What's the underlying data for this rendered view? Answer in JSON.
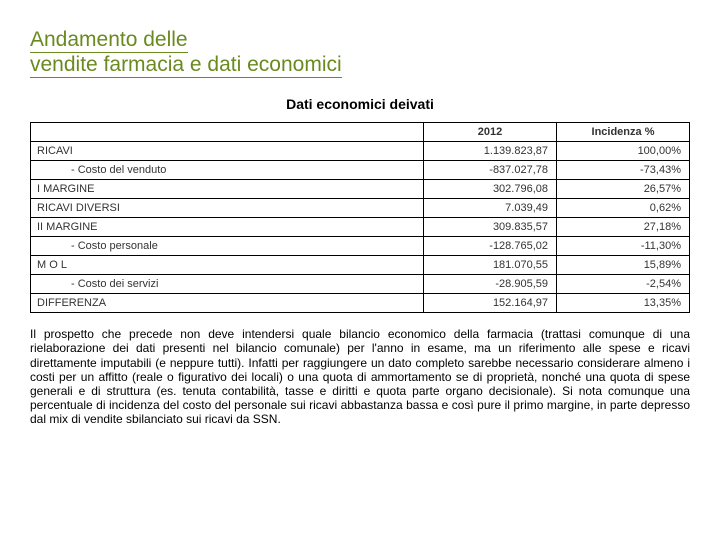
{
  "title_line1": "Andamento delle",
  "title_line2": "vendite farmacia e dati economici",
  "subtitle": "Dati economici deivati",
  "columns": {
    "year": "2012",
    "pct": "Incidenza %"
  },
  "rows": [
    {
      "label": "RICAVI",
      "indent": false,
      "value": "1.139.823,87",
      "pct": "100,00%"
    },
    {
      "label": "- Costo del venduto",
      "indent": true,
      "value": "-837.027,78",
      "pct": "-73,43%"
    },
    {
      "label": "I MARGINE",
      "indent": false,
      "value": "302.796,08",
      "pct": "26,57%"
    },
    {
      "label": "RICAVI DIVERSI",
      "indent": false,
      "value": "7.039,49",
      "pct": "0,62%"
    },
    {
      "label": "II MARGINE",
      "indent": false,
      "value": "309.835,57",
      "pct": "27,18%"
    },
    {
      "label": "- Costo personale",
      "indent": true,
      "value": "-128.765,02",
      "pct": "-11,30%"
    },
    {
      "label": "M O L",
      "indent": false,
      "value": "181.070,55",
      "pct": "15,89%"
    },
    {
      "label": "- Costo dei servizi",
      "indent": true,
      "value": "-28.905,59",
      "pct": "-2,54%"
    },
    {
      "label": "DIFFERENZA",
      "indent": false,
      "value": "152.164,97",
      "pct": "13,35%"
    }
  ],
  "note": "Il prospetto che precede non deve intendersi quale bilancio economico della farmacia (trattasi comunque di una rielaborazione dei dati presenti nel bilancio comunale) per l'anno in esame, ma un riferimento alle spese e ricavi direttamente imputabili (e neppure tutti). Infatti per raggiungere un dato completo sarebbe necessario considerare almeno i costi per un affitto (reale o figurativo dei locali) o una quota di ammortamento se di proprietà, nonché una quota di spese generali e di struttura (es. tenuta contabilità, tasse e diritti e quota parte organo decisionale). Si nota comunque una percentuale di incidenza del costo del personale sui ricavi abbastanza bassa e così pure il primo margine, in parte depresso dal mix di vendite sbilanciato sui ricavi da SSN."
}
